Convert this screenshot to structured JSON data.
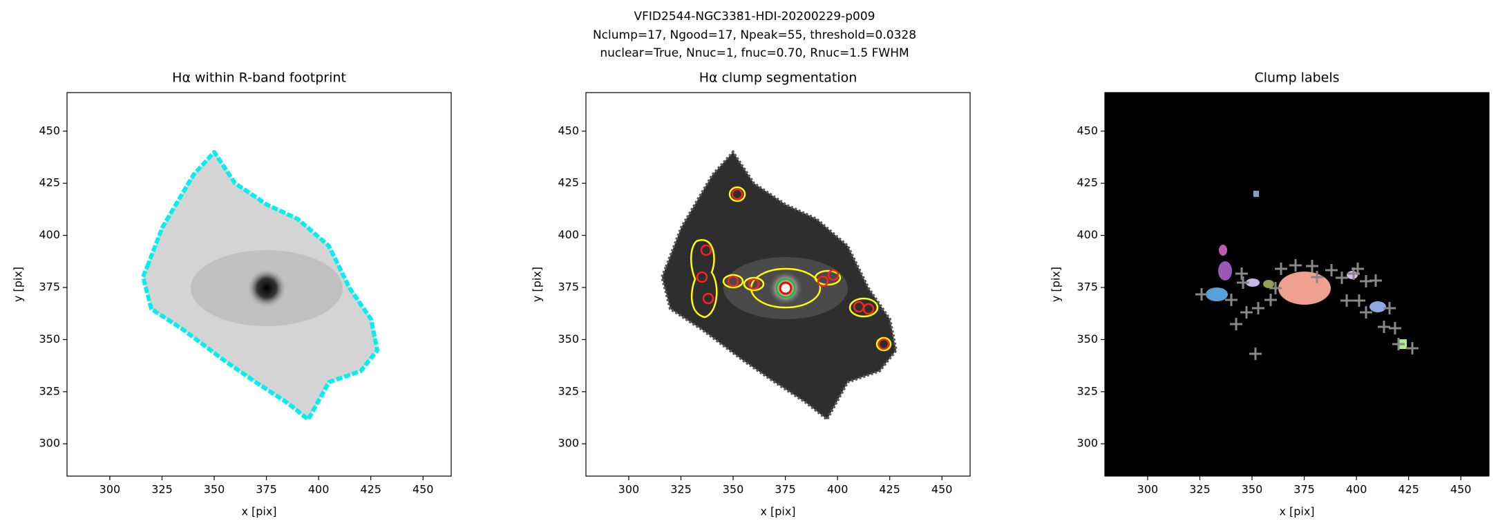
{
  "figure": {
    "title_lines": [
      "VFID2544-NGC3381-HDI-20200229-p009",
      "Nclump=17, Ngood=17, Npeak=55, threshold=0.0328",
      "nuclear=True, Nnuc=1, fnuc=0.70, Rnuc=1.5 FWHM"
    ]
  },
  "chart_data": [
    {
      "type": "image",
      "title": "Hα within R-band footprint",
      "xlabel": "x [pix]",
      "ylabel": "y [pix]",
      "xlim": [
        279.5,
        463.5
      ],
      "ylim": [
        284.5,
        468.5
      ],
      "xticks": [
        300,
        325,
        350,
        375,
        400,
        425,
        450
      ],
      "yticks": [
        300,
        325,
        350,
        375,
        400,
        425,
        450
      ]
    },
    {
      "type": "image",
      "title": "Hα clump segmentation",
      "xlabel": "x [pix]",
      "ylabel": "y [pix]",
      "xlim": [
        279.5,
        463.5
      ],
      "ylim": [
        284.5,
        468.5
      ],
      "xticks": [
        300,
        325,
        350,
        375,
        400,
        425,
        450
      ],
      "yticks": [
        300,
        325,
        350,
        375,
        400,
        425,
        450
      ]
    },
    {
      "type": "image",
      "title": "Clump labels",
      "xlabel": "x [pix]",
      "ylabel": "y [pix]",
      "xlim": [
        279.5,
        463.5
      ],
      "ylim": [
        284.5,
        468.5
      ],
      "xticks": [
        300,
        325,
        350,
        375,
        400,
        425,
        450
      ],
      "yticks": [
        300,
        325,
        350,
        375,
        400,
        425,
        450
      ]
    }
  ]
}
